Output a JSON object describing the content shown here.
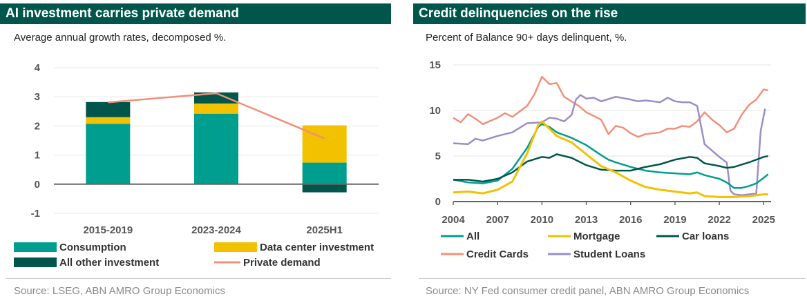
{
  "charts": [
    {
      "title": "AI investment carries private demand",
      "subtitle": "Average annual growth rates, decomposed %.",
      "source": "Source: LSEG, ABN AMRO Group Economics",
      "chart_data": {
        "type": "bar",
        "stacked": true,
        "categories": [
          "2015-2019",
          "2023-2024",
          "2025H1"
        ],
        "ylim": [
          -1,
          4
        ],
        "yticks": [
          "4",
          "3",
          "2",
          "1",
          "0",
          "-1"
        ],
        "grid": true,
        "legend_position": "bottom",
        "series": [
          {
            "name": "Consumption",
            "kind": "bar",
            "color": "#009e8e",
            "values": [
              2.07,
              2.42,
              0.74
            ]
          },
          {
            "name": "Data center investment",
            "kind": "bar",
            "color": "#f2c100",
            "values": [
              0.23,
              0.35,
              1.28
            ]
          },
          {
            "name": "All other investment",
            "kind": "bar",
            "color": "#00564a",
            "values": [
              0.52,
              0.38,
              -0.28
            ]
          },
          {
            "name": "Private demand",
            "kind": "line",
            "color": "#f0907a",
            "values": [
              2.81,
              3.12,
              1.57
            ]
          }
        ]
      }
    },
    {
      "title": "Credit delinquencies on the rise",
      "subtitle": "Percent of Balance 90+ days delinquent, %.",
      "source": "Source: NY Fed consumer credit panel, ABN AMRO Group Economics",
      "chart_data": {
        "type": "line",
        "xlim": [
          2004,
          2025.5
        ],
        "ylim": [
          0,
          15
        ],
        "xticks": [
          "2004",
          "2007",
          "2010",
          "2013",
          "2016",
          "2019",
          "2022",
          "2025"
        ],
        "yticks": [
          "15",
          "10",
          "5",
          "0"
        ],
        "grid": true,
        "legend_position": "bottom",
        "series": [
          {
            "name": "All",
            "color": "#009e8e",
            "points": [
              [
                2004,
                2.4
              ],
              [
                2005,
                2.1
              ],
              [
                2006,
                2.0
              ],
              [
                2007,
                2.3
              ],
              [
                2008,
                3.6
              ],
              [
                2009,
                5.9
              ],
              [
                2009.75,
                8.2
              ],
              [
                2010,
                8.5
              ],
              [
                2010.5,
                8.2
              ],
              [
                2011,
                7.6
              ],
              [
                2012,
                7.0
              ],
              [
                2013,
                6.2
              ],
              [
                2014,
                5.1
              ],
              [
                2014.5,
                4.6
              ],
              [
                2015,
                4.3
              ],
              [
                2016,
                3.8
              ],
              [
                2017,
                3.4
              ],
              [
                2018,
                3.2
              ],
              [
                2019,
                3.1
              ],
              [
                2020,
                3.0
              ],
              [
                2020.5,
                3.2
              ],
              [
                2021,
                2.9
              ],
              [
                2022,
                2.5
              ],
              [
                2022.5,
                2.1
              ],
              [
                2023,
                1.5
              ],
              [
                2023.5,
                1.5
              ],
              [
                2024,
                1.7
              ],
              [
                2024.5,
                2.0
              ],
              [
                2025,
                2.6
              ],
              [
                2025.3,
                3.0
              ]
            ]
          },
          {
            "name": "Mortgage",
            "color": "#f2c100",
            "points": [
              [
                2004,
                1.0
              ],
              [
                2005,
                1.1
              ],
              [
                2006,
                0.9
              ],
              [
                2007,
                1.3
              ],
              [
                2008,
                2.2
              ],
              [
                2009,
                5.3
              ],
              [
                2009.75,
                8.4
              ],
              [
                2010,
                8.8
              ],
              [
                2010.5,
                8.0
              ],
              [
                2011,
                7.2
              ],
              [
                2012,
                6.5
              ],
              [
                2013,
                5.2
              ],
              [
                2014,
                3.9
              ],
              [
                2015,
                3.2
              ],
              [
                2016,
                2.3
              ],
              [
                2017,
                1.6
              ],
              [
                2018,
                1.3
              ],
              [
                2019,
                1.1
              ],
              [
                2020,
                0.9
              ],
              [
                2020.5,
                1.0
              ],
              [
                2021,
                0.6
              ],
              [
                2022,
                0.5
              ],
              [
                2023,
                0.5
              ],
              [
                2024,
                0.6
              ],
              [
                2025,
                0.8
              ],
              [
                2025.3,
                0.8
              ]
            ]
          },
          {
            "name": "Car loans",
            "color": "#00564a",
            "points": [
              [
                2004,
                2.4
              ],
              [
                2005,
                2.4
              ],
              [
                2006,
                2.2
              ],
              [
                2007,
                2.5
              ],
              [
                2008,
                3.2
              ],
              [
                2009,
                4.4
              ],
              [
                2010,
                4.9
              ],
              [
                2010.5,
                4.8
              ],
              [
                2011,
                5.2
              ],
              [
                2012,
                4.8
              ],
              [
                2013,
                4.0
              ],
              [
                2014,
                3.5
              ],
              [
                2015,
                3.4
              ],
              [
                2016,
                3.4
              ],
              [
                2017,
                3.8
              ],
              [
                2018,
                4.1
              ],
              [
                2019,
                4.6
              ],
              [
                2020,
                4.9
              ],
              [
                2020.5,
                4.8
              ],
              [
                2021,
                4.2
              ],
              [
                2022,
                3.9
              ],
              [
                2022.5,
                3.7
              ],
              [
                2023,
                3.8
              ],
              [
                2024,
                4.3
              ],
              [
                2025,
                4.9
              ],
              [
                2025.3,
                5.0
              ]
            ]
          },
          {
            "name": "Credit Cards",
            "color": "#f0907a",
            "points": [
              [
                2004,
                9.2
              ],
              [
                2004.5,
                8.7
              ],
              [
                2005,
                9.6
              ],
              [
                2005.5,
                9.1
              ],
              [
                2006,
                8.5
              ],
              [
                2007,
                9.2
              ],
              [
                2007.5,
                9.7
              ],
              [
                2008,
                9.3
              ],
              [
                2009,
                10.5
              ],
              [
                2009.5,
                11.8
              ],
              [
                2010,
                13.7
              ],
              [
                2010.5,
                12.9
              ],
              [
                2011,
                13.0
              ],
              [
                2011.5,
                11.5
              ],
              [
                2012,
                11.0
              ],
              [
                2012.5,
                10.5
              ],
              [
                2013,
                9.8
              ],
              [
                2014,
                9.0
              ],
              [
                2014.5,
                7.4
              ],
              [
                2015,
                8.3
              ],
              [
                2015.5,
                8.1
              ],
              [
                2016,
                7.5
              ],
              [
                2016.5,
                7.1
              ],
              [
                2017,
                7.4
              ],
              [
                2018,
                7.6
              ],
              [
                2018.5,
                8.0
              ],
              [
                2019,
                8.0
              ],
              [
                2019.5,
                8.3
              ],
              [
                2020,
                8.2
              ],
              [
                2020.5,
                8.8
              ],
              [
                2021,
                9.8
              ],
              [
                2021.5,
                9.0
              ],
              [
                2022,
                8.4
              ],
              [
                2022.5,
                7.6
              ],
              [
                2023,
                8.0
              ],
              [
                2023.5,
                9.5
              ],
              [
                2024,
                10.6
              ],
              [
                2024.5,
                11.2
              ],
              [
                2025,
                12.3
              ],
              [
                2025.3,
                12.2
              ]
            ]
          },
          {
            "name": "Student Loans",
            "color": "#9c8cc8",
            "points": [
              [
                2004,
                6.4
              ],
              [
                2005,
                6.3
              ],
              [
                2005.5,
                6.9
              ],
              [
                2006,
                6.7
              ],
              [
                2007,
                7.2
              ],
              [
                2008,
                7.6
              ],
              [
                2008.5,
                8.1
              ],
              [
                2009,
                8.6
              ],
              [
                2010,
                8.7
              ],
              [
                2010.5,
                9.2
              ],
              [
                2011,
                9.1
              ],
              [
                2011.5,
                8.8
              ],
              [
                2012,
                9.5
              ],
              [
                2012.3,
                11.2
              ],
              [
                2012.6,
                11.7
              ],
              [
                2013,
                11.3
              ],
              [
                2013.5,
                11.4
              ],
              [
                2014,
                11.0
              ],
              [
                2015,
                11.5
              ],
              [
                2016,
                11.2
              ],
              [
                2016.5,
                11.0
              ],
              [
                2017,
                11.1
              ],
              [
                2018,
                10.9
              ],
              [
                2018.5,
                11.4
              ],
              [
                2019,
                11.0
              ],
              [
                2019.5,
                10.9
              ],
              [
                2020,
                10.9
              ],
              [
                2020.5,
                10.5
              ],
              [
                2021,
                6.3
              ],
              [
                2021.5,
                5.6
              ],
              [
                2022,
                4.9
              ],
              [
                2022.5,
                4.3
              ],
              [
                2022.75,
                1.2
              ],
              [
                2023,
                0.8
              ],
              [
                2023.5,
                0.7
              ],
              [
                2024,
                0.8
              ],
              [
                2024.5,
                0.9
              ],
              [
                2024.8,
                7.8
              ],
              [
                2025.1,
                10.2
              ]
            ]
          }
        ]
      }
    }
  ]
}
